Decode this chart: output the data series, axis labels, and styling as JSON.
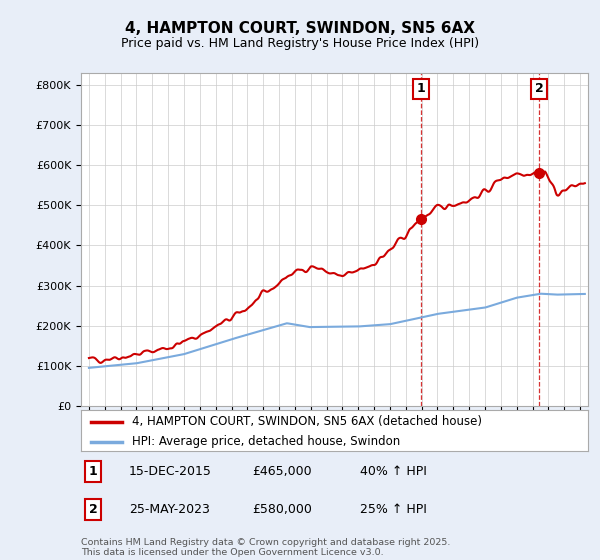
{
  "title": "4, HAMPTON COURT, SWINDON, SN5 6AX",
  "subtitle": "Price paid vs. HM Land Registry's House Price Index (HPI)",
  "ylabel_ticks": [
    "£0",
    "£100K",
    "£200K",
    "£300K",
    "£400K",
    "£500K",
    "£600K",
    "£700K",
    "£800K"
  ],
  "ytick_values": [
    0,
    100000,
    200000,
    300000,
    400000,
    500000,
    600000,
    700000,
    800000
  ],
  "ylim": [
    0,
    830000
  ],
  "xlim_start": 1994.5,
  "xlim_end": 2026.5,
  "line1_color": "#cc0000",
  "line2_color": "#7aaadd",
  "sale1_x": 2015.96,
  "sale1_y": 465000,
  "sale2_x": 2023.4,
  "sale2_y": 580000,
  "legend_label1": "4, HAMPTON COURT, SWINDON, SN5 6AX (detached house)",
  "legend_label2": "HPI: Average price, detached house, Swindon",
  "annotation1_date": "15-DEC-2015",
  "annotation1_price": "£465,000",
  "annotation1_hpi": "40% ↑ HPI",
  "annotation2_date": "25-MAY-2023",
  "annotation2_price": "£580,000",
  "annotation2_hpi": "25% ↑ HPI",
  "footer": "Contains HM Land Registry data © Crown copyright and database right 2025.\nThis data is licensed under the Open Government Licence v3.0.",
  "bg_color": "#e8eef8",
  "plot_bg_color": "#ffffff",
  "grid_color": "#cccccc"
}
